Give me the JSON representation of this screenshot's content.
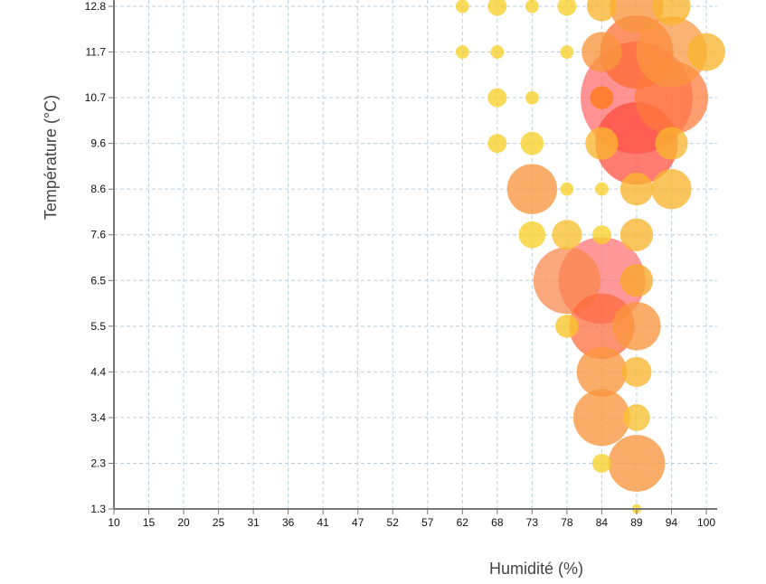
{
  "chart_data": {
    "type": "scatter",
    "subtype": "bubble",
    "title": "",
    "xlabel": "Humidité (%)",
    "ylabel": "Température (°C)",
    "x_ticks": [
      "10",
      "15",
      "20",
      "25",
      "31",
      "36",
      "41",
      "47",
      "52",
      "57",
      "62",
      "68",
      "73",
      "78",
      "84",
      "89",
      "94",
      "100"
    ],
    "y_ticks": [
      "1.3",
      "2.3",
      "3.4",
      "4.4",
      "5.5",
      "6.5",
      "7.6",
      "8.6",
      "9.6",
      "10.7",
      "11.7",
      "12.8"
    ],
    "xlim": [
      10,
      100
    ],
    "ylim": [
      1.3,
      12.8
    ],
    "grid": true,
    "legend": "none",
    "size_meaning": "relative frequency (bubble area)",
    "color_scale": [
      "#f9cf2a",
      "#f8b530",
      "#f9963d",
      "#ff7a4a",
      "#ff5a5a"
    ],
    "points": [
      {
        "humidity": 62,
        "temperature": 12.8,
        "size": 1,
        "color": "#f9cf2a"
      },
      {
        "humidity": 68,
        "temperature": 12.8,
        "size": 2,
        "color": "#f9cf2a"
      },
      {
        "humidity": 73,
        "temperature": 12.8,
        "size": 1,
        "color": "#f9cf2a"
      },
      {
        "humidity": 78,
        "temperature": 12.8,
        "size": 2,
        "color": "#f9cf2a"
      },
      {
        "humidity": 84,
        "temperature": 12.8,
        "size": 5,
        "color": "#f8b530"
      },
      {
        "humidity": 89,
        "temperature": 12.8,
        "size": 16,
        "color": "#f9963d"
      },
      {
        "humidity": 94,
        "temperature": 12.8,
        "size": 8,
        "color": "#f8b530"
      },
      {
        "humidity": 62,
        "temperature": 11.7,
        "size": 1,
        "color": "#f9cf2a"
      },
      {
        "humidity": 68,
        "temperature": 11.7,
        "size": 1,
        "color": "#f9cf2a"
      },
      {
        "humidity": 78,
        "temperature": 11.7,
        "size": 1,
        "color": "#f9cf2a"
      },
      {
        "humidity": 84,
        "temperature": 11.7,
        "size": 9,
        "color": "#f9963d"
      },
      {
        "humidity": 89,
        "temperature": 11.7,
        "size": 30,
        "color": "#ff6a2e"
      },
      {
        "humidity": 94,
        "temperature": 11.7,
        "size": 28,
        "color": "#f9963d"
      },
      {
        "humidity": 100,
        "temperature": 11.7,
        "size": 8,
        "color": "#f8b530"
      },
      {
        "humidity": 68,
        "temperature": 10.7,
        "size": 2,
        "color": "#f9cf2a"
      },
      {
        "humidity": 73,
        "temperature": 10.7,
        "size": 1,
        "color": "#f9cf2a"
      },
      {
        "humidity": 84,
        "temperature": 10.7,
        "size": 3,
        "color": "#ff7a1a"
      },
      {
        "humidity": 89,
        "temperature": 10.7,
        "size": 70,
        "color": "#ff6a6a"
      },
      {
        "humidity": 94,
        "temperature": 10.7,
        "size": 30,
        "color": "#ff7a3a"
      },
      {
        "humidity": 68,
        "temperature": 9.6,
        "size": 2,
        "color": "#f9cf2a"
      },
      {
        "humidity": 73,
        "temperature": 9.6,
        "size": 3,
        "color": "#f9cf2a"
      },
      {
        "humidity": 84,
        "temperature": 9.6,
        "size": 6,
        "color": "#f8b530"
      },
      {
        "humidity": 89,
        "temperature": 9.6,
        "size": 38,
        "color": "#ff4a3a"
      },
      {
        "humidity": 94,
        "temperature": 9.6,
        "size": 6,
        "color": "#f8b530"
      },
      {
        "humidity": 73,
        "temperature": 8.6,
        "size": 14,
        "color": "#f9963d"
      },
      {
        "humidity": 78,
        "temperature": 8.6,
        "size": 1,
        "color": "#f9cf2a"
      },
      {
        "humidity": 84,
        "temperature": 8.6,
        "size": 1,
        "color": "#f9cf2a"
      },
      {
        "humidity": 89,
        "temperature": 8.6,
        "size": 6,
        "color": "#f8b530"
      },
      {
        "humidity": 94,
        "temperature": 8.6,
        "size": 9,
        "color": "#f8b530"
      },
      {
        "humidity": 73,
        "temperature": 7.6,
        "size": 4,
        "color": "#f9cf2a"
      },
      {
        "humidity": 78,
        "temperature": 7.6,
        "size": 5,
        "color": "#f8c030"
      },
      {
        "humidity": 84,
        "temperature": 7.6,
        "size": 2,
        "color": "#f9cf2a"
      },
      {
        "humidity": 89,
        "temperature": 7.6,
        "size": 6,
        "color": "#f8b530"
      },
      {
        "humidity": 78,
        "temperature": 6.5,
        "size": 25,
        "color": "#f9884a"
      },
      {
        "humidity": 84,
        "temperature": 6.5,
        "size": 42,
        "color": "#ff7070"
      },
      {
        "humidity": 89,
        "temperature": 6.5,
        "size": 6,
        "color": "#f9a62a"
      },
      {
        "humidity": 78,
        "temperature": 5.5,
        "size": 3,
        "color": "#f9c52a"
      },
      {
        "humidity": 84,
        "temperature": 5.5,
        "size": 24,
        "color": "#ff6a3a"
      },
      {
        "humidity": 89,
        "temperature": 5.5,
        "size": 13,
        "color": "#f9963d"
      },
      {
        "humidity": 84,
        "temperature": 4.4,
        "size": 14,
        "color": "#f9963d"
      },
      {
        "humidity": 89,
        "temperature": 4.4,
        "size": 5,
        "color": "#f8b530"
      },
      {
        "humidity": 84,
        "temperature": 3.4,
        "size": 18,
        "color": "#f9963d"
      },
      {
        "humidity": 89,
        "temperature": 3.4,
        "size": 4,
        "color": "#f8c030"
      },
      {
        "humidity": 84,
        "temperature": 2.3,
        "size": 2,
        "color": "#f9cf2a"
      },
      {
        "humidity": 89,
        "temperature": 2.3,
        "size": 18,
        "color": "#f9963d"
      },
      {
        "humidity": 89,
        "temperature": 1.3,
        "size": 0.5,
        "color": "#f9cf2a"
      }
    ]
  }
}
